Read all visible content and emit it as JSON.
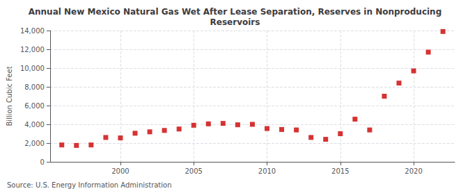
{
  "chart_data": {
    "type": "scatter",
    "title": "Annual New Mexico Natural Gas Wet After Lease Separation, Reserves in Nonproducing\nReservoirs",
    "ylabel": "Billion Cubic Feet",
    "annotations": [
      "Source: U.S. Energy Information Administration"
    ],
    "color": "#cc0000",
    "marker": "square",
    "grid": true,
    "xlim": [
      1995.2,
      2022.8
    ],
    "xticks": [
      2000,
      2005,
      2010,
      2015,
      2020
    ],
    "ylim": [
      0,
      14000
    ],
    "yticks": [
      0,
      {
        "value": 2000,
        "label": "2,000"
      },
      {
        "value": 4000,
        "label": "4,000"
      },
      {
        "value": 6000,
        "label": "6,000"
      },
      {
        "value": 8000,
        "label": "8,000"
      },
      {
        "value": 10000,
        "label": "10,000"
      },
      {
        "value": 12000,
        "label": "12,000"
      },
      {
        "value": 14000,
        "label": "14,000"
      }
    ],
    "x": [
      1996,
      1997,
      1998,
      1999,
      2000,
      2001,
      2002,
      2003,
      2004,
      2005,
      2006,
      2007,
      2008,
      2009,
      2010,
      2011,
      2012,
      2013,
      2014,
      2015,
      2016,
      2017,
      2018,
      2019,
      2020,
      2021,
      2022
    ],
    "values": [
      1800,
      1750,
      1800,
      2600,
      2550,
      3050,
      3200,
      3350,
      3500,
      3900,
      4050,
      4100,
      3950,
      4000,
      3550,
      3450,
      3400,
      2600,
      2400,
      3000,
      4550,
      3400,
      7000,
      8400,
      9700,
      11700,
      13900
    ]
  }
}
